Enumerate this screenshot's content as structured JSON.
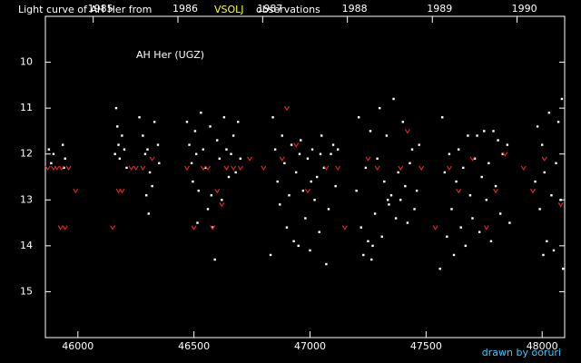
{
  "chart_data": {
    "type": "scatter",
    "title": "Light curve of AH Her from",
    "title_highlight": "VSOLJ",
    "title_suffix": "observations",
    "annotation": "AH Her (UGZ)",
    "credit": "drawn by ooruri",
    "xlim": [
      45860,
      48097
    ],
    "ylim": [
      9,
      16
    ],
    "y_inverted": true,
    "xticks": [
      46000,
      46500,
      47000,
      47500,
      48000
    ],
    "yticks": [
      10,
      11,
      12,
      13,
      14,
      15
    ],
    "x2ticks": [
      {
        "value": 46066,
        "label": "1985"
      },
      {
        "value": 46431,
        "label": "1986"
      },
      {
        "value": 46796,
        "label": "1987"
      },
      {
        "value": 47161,
        "label": "1988"
      },
      {
        "value": 47527,
        "label": "1989"
      },
      {
        "value": 47892,
        "label": "1990"
      }
    ],
    "series": [
      {
        "color": "#ffffff",
        "marker": "dot",
        "x": [
          45875,
          45885,
          45895,
          45935,
          45945,
          45940,
          46165,
          46170,
          46175,
          46180,
          46190,
          46200,
          46210,
          46160,
          46265,
          46280,
          46290,
          46300,
          46310,
          46320,
          46305,
          46330,
          46345,
          46350,
          46295,
          46470,
          46480,
          46490,
          46495,
          46505,
          46510,
          46520,
          46530,
          46540,
          46550,
          46560,
          46570,
          46575,
          46580,
          46590,
          46600,
          46610,
          46620,
          46630,
          46640,
          46650,
          46660,
          46670,
          46680,
          46690,
          46700,
          46515,
          46830,
          46840,
          46850,
          46860,
          46870,
          46880,
          46890,
          46900,
          46910,
          46920,
          46930,
          46940,
          46950,
          46960,
          46970,
          46980,
          46990,
          47000,
          47010,
          47020,
          47030,
          47040,
          47050,
          47060,
          47070,
          47080,
          47090,
          47100,
          47110,
          47120,
          46955,
          47005,
          47045,
          47200,
          47210,
          47220,
          47230,
          47240,
          47250,
          47260,
          47270,
          47280,
          47290,
          47300,
          47310,
          47320,
          47330,
          47340,
          47350,
          47360,
          47370,
          47380,
          47390,
          47400,
          47410,
          47420,
          47430,
          47440,
          47450,
          47460,
          47470,
          47335,
          47265,
          47560,
          47570,
          47580,
          47590,
          47600,
          47610,
          47620,
          47630,
          47640,
          47650,
          47660,
          47670,
          47680,
          47690,
          47700,
          47710,
          47720,
          47730,
          47740,
          47750,
          47760,
          47770,
          47780,
          47790,
          47800,
          47810,
          47820,
          47830,
          47850,
          47860,
          47970,
          47980,
          47990,
          48000,
          48010,
          48020,
          48030,
          48040,
          48050,
          48060,
          48070,
          48080,
          48090,
          48085,
          48005
        ],
        "values": [
          11.9,
          12.2,
          12.0,
          11.8,
          12.1,
          12.3,
          11.0,
          11.4,
          11.8,
          12.1,
          11.6,
          11.9,
          12.3,
          12.0,
          11.2,
          11.6,
          12.0,
          11.9,
          12.4,
          12.7,
          13.3,
          11.3,
          11.8,
          12.2,
          12.9,
          11.3,
          11.8,
          12.2,
          12.6,
          11.5,
          12.0,
          12.8,
          11.1,
          11.9,
          12.3,
          13.2,
          11.4,
          12.9,
          13.6,
          14.3,
          11.7,
          12.1,
          13.0,
          11.2,
          11.9,
          12.5,
          12.0,
          11.6,
          12.4,
          11.3,
          12.1,
          13.5,
          14.2,
          11.2,
          11.9,
          12.6,
          13.1,
          11.6,
          12.2,
          13.6,
          12.9,
          11.8,
          13.9,
          12.4,
          14.0,
          11.7,
          12.8,
          13.4,
          12.1,
          14.1,
          11.9,
          13.0,
          12.5,
          13.7,
          11.6,
          12.3,
          14.4,
          13.2,
          12.0,
          11.8,
          12.7,
          11.9,
          12.0,
          12.6,
          12.0,
          12.8,
          11.2,
          13.6,
          14.2,
          12.3,
          13.9,
          11.5,
          14.0,
          13.3,
          12.1,
          11.0,
          13.8,
          12.6,
          11.6,
          13.1,
          12.9,
          10.8,
          13.4,
          12.4,
          13.0,
          11.3,
          12.7,
          13.5,
          12.2,
          11.9,
          13.2,
          12.8,
          11.8,
          13.0,
          14.3,
          14.5,
          11.2,
          12.4,
          13.8,
          12.0,
          13.2,
          14.2,
          12.6,
          11.9,
          13.6,
          12.3,
          14.0,
          11.6,
          12.9,
          13.4,
          12.1,
          11.6,
          13.7,
          12.5,
          11.5,
          13.0,
          12.2,
          13.9,
          11.5,
          12.7,
          11.7,
          13.3,
          12.0,
          11.8,
          13.5,
          12.6,
          11.4,
          13.2,
          11.8,
          12.4,
          13.9,
          11.1,
          12.9,
          14.1,
          12.2,
          11.3,
          13.0,
          14.5,
          10.8,
          14.2
        ]
      },
      {
        "color": "#e02020",
        "marker": "v",
        "x": [
          45870,
          45895,
          45910,
          45930,
          45960,
          45925,
          45945,
          45990,
          46150,
          46175,
          46190,
          46230,
          46250,
          46280,
          46320,
          46470,
          46500,
          46540,
          46560,
          46580,
          46600,
          46620,
          46640,
          46670,
          46700,
          46740,
          46800,
          46880,
          46900,
          46940,
          46990,
          47070,
          47120,
          47150,
          47250,
          47290,
          47390,
          47420,
          47480,
          47540,
          47600,
          47640,
          47700,
          47760,
          47800,
          47840,
          47920,
          47960,
          48010,
          48080
        ],
        "values": [
          12.3,
          12.3,
          12.3,
          12.3,
          12.3,
          13.6,
          13.6,
          12.8,
          13.6,
          12.8,
          12.8,
          12.3,
          12.3,
          12.3,
          12.1,
          12.3,
          13.6,
          12.3,
          12.3,
          13.6,
          12.8,
          13.1,
          12.3,
          12.3,
          12.3,
          12.1,
          12.3,
          12.1,
          11.0,
          11.8,
          12.8,
          12.3,
          12.3,
          13.6,
          12.1,
          12.3,
          12.3,
          11.5,
          12.3,
          13.6,
          12.3,
          12.8,
          12.1,
          13.6,
          12.8,
          12.0,
          12.3,
          12.8,
          12.1,
          13.1
        ]
      }
    ]
  }
}
